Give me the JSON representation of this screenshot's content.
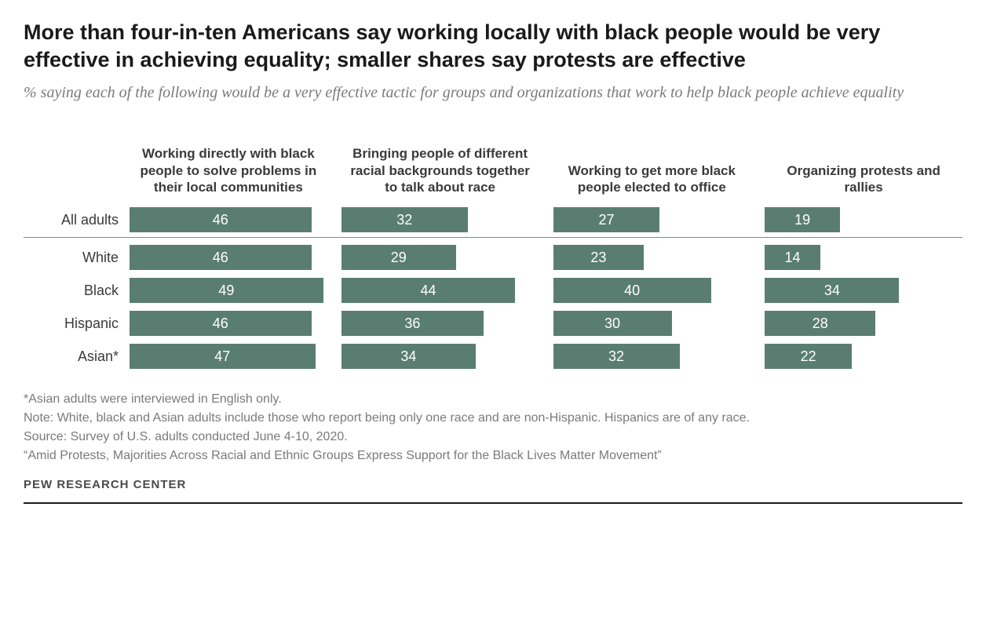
{
  "title": "More than four-in-ten Americans say working locally with black people would be very effective in achieving equality; smaller shares say protests are effective",
  "subtitle": "% saying each of the following would be a very effective tactic for groups and organizations that work to help black people achieve equality",
  "colors": {
    "bar": "#5a7d72",
    "bar_text": "#ffffff",
    "background": "#ffffff",
    "title": "#1a1a1a",
    "subtitle": "#7a7a7a",
    "label": "#3a3a3a",
    "footnote": "#7a7a7a",
    "divider": "#888888"
  },
  "chart": {
    "type": "grouped-bar",
    "column_max_value": 50,
    "columns": [
      {
        "label": "Working directly with black people to solve problems in their local communities"
      },
      {
        "label": "Bringing people of different racial backgrounds together to talk about race"
      },
      {
        "label": "Working to get more black people elected to office"
      },
      {
        "label": "Organizing protests and rallies"
      }
    ],
    "rows": [
      {
        "label": "All adults",
        "values": [
          46,
          32,
          27,
          19
        ],
        "divider_after": true
      },
      {
        "label": "White",
        "values": [
          46,
          29,
          23,
          14
        ]
      },
      {
        "label": "Black",
        "values": [
          49,
          44,
          40,
          34
        ]
      },
      {
        "label": "Hispanic",
        "values": [
          46,
          36,
          30,
          28
        ]
      },
      {
        "label": "Asian*",
        "values": [
          47,
          34,
          32,
          22
        ]
      }
    ]
  },
  "footnotes": [
    "*Asian adults were interviewed in English only.",
    "Note: White, black and Asian adults include those who report being only one race and are non-Hispanic. Hispanics are of any race.",
    "Source: Survey of U.S. adults conducted June 4-10, 2020.",
    "“Amid Protests, Majorities Across Racial and Ethnic Groups Express Support for the Black Lives Matter Movement”"
  ],
  "source_label": "PEW RESEARCH CENTER"
}
